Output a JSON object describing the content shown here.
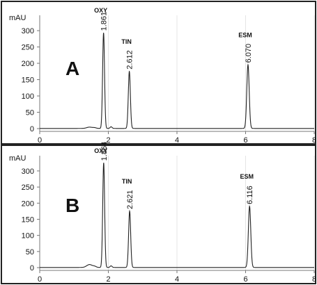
{
  "chart_data": [
    {
      "type": "line",
      "panel_label": "A",
      "ylabel": "mAU",
      "xlim": [
        0,
        8
      ],
      "ylim": [
        0,
        330
      ],
      "x_ticks": [
        0,
        2,
        4,
        6,
        8
      ],
      "y_ticks": [
        0,
        50,
        100,
        150,
        200,
        250,
        300
      ],
      "peaks": [
        {
          "compound": "OXY",
          "rt": "1.861",
          "x": 1.861,
          "height": 293,
          "width": 0.028
        },
        {
          "compound": "TIN",
          "rt": "2.612",
          "x": 2.612,
          "height": 175,
          "width": 0.03
        },
        {
          "compound": "ESM",
          "rt": "6.070",
          "x": 6.07,
          "height": 195,
          "width": 0.035
        }
      ],
      "minor_peaks": [
        {
          "x": 1.45,
          "height": 4,
          "width": 0.08
        },
        {
          "x": 1.6,
          "height": 2,
          "width": 0.05
        },
        {
          "x": 2.08,
          "height": 5,
          "width": 0.03
        }
      ]
    },
    {
      "type": "line",
      "panel_label": "B",
      "ylabel": "mAU",
      "xlim": [
        0,
        8
      ],
      "ylim": [
        0,
        330
      ],
      "x_ticks": [
        0,
        2,
        4,
        6,
        8
      ],
      "y_ticks": [
        0,
        50,
        100,
        150,
        200,
        250,
        300
      ],
      "peaks": [
        {
          "compound": "OXY",
          "rt": "1.864",
          "x": 1.864,
          "height": 325,
          "width": 0.028
        },
        {
          "compound": "TIN",
          "rt": "2.621",
          "x": 2.621,
          "height": 175,
          "width": 0.03
        },
        {
          "compound": "ESM",
          "rt": "6.116",
          "x": 6.116,
          "height": 190,
          "width": 0.035
        }
      ],
      "minor_peaks": [
        {
          "x": 1.45,
          "height": 9,
          "width": 0.08
        },
        {
          "x": 1.6,
          "height": 3,
          "width": 0.05
        },
        {
          "x": 2.08,
          "height": 5,
          "width": 0.03
        }
      ]
    }
  ],
  "colors": {
    "trace": "#222222",
    "axis": "#777777",
    "grid": "#e4e4e4",
    "frame": "#222222",
    "text": "#111111"
  }
}
